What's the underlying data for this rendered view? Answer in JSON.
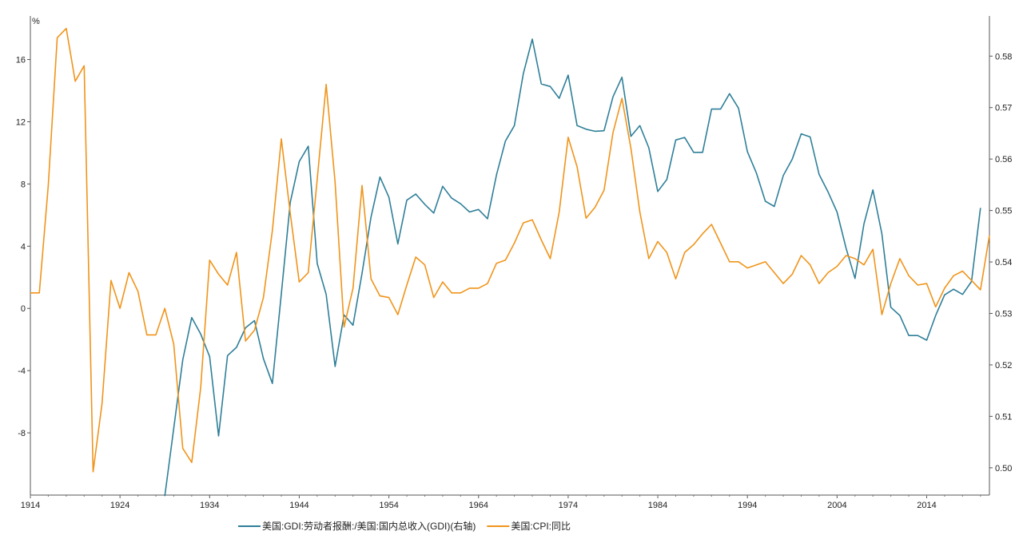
{
  "chart_data": {
    "type": "line",
    "title": "",
    "left_axis": {
      "unit_label": "%",
      "range": [
        -12,
        18.8
      ],
      "ticks": [
        -8,
        -4,
        0,
        4,
        8,
        12,
        16
      ]
    },
    "right_axis": {
      "range": [
        0.4947,
        0.5878
      ],
      "ticks": [
        0.5,
        0.51,
        0.52,
        0.53,
        0.54,
        0.55,
        0.56,
        0.57,
        0.58
      ]
    },
    "x_axis": {
      "range": [
        1914,
        2021
      ],
      "ticks": [
        1914,
        1924,
        1934,
        1944,
        1954,
        1964,
        1974,
        1984,
        1994,
        2004,
        2014
      ]
    },
    "series": [
      {
        "name": "美国:GDI:劳动者报酬:/美国:国内总收入(GDI)(右轴)",
        "axis": "right",
        "color": "#2f7f99",
        "x": [
          1929,
          1931,
          1932,
          1933,
          1934,
          1935,
          1936,
          1937,
          1938,
          1939,
          1940,
          1941,
          1942,
          1943,
          1944,
          1945,
          1946,
          1947,
          1948,
          1949,
          1950,
          1951,
          1952,
          1953,
          1954,
          1955,
          1956,
          1957,
          1958,
          1959,
          1960,
          1961,
          1962,
          1963,
          1964,
          1965,
          1966,
          1967,
          1968,
          1969,
          1970,
          1971,
          1972,
          1973,
          1974,
          1975,
          1976,
          1977,
          1978,
          1979,
          1980,
          1981,
          1982,
          1983,
          1984,
          1985,
          1986,
          1987,
          1988,
          1989,
          1990,
          1991,
          1992,
          1993,
          1994,
          1995,
          1996,
          1997,
          1998,
          1999,
          2000,
          2001,
          2002,
          2003,
          2004,
          2005,
          2006,
          2007,
          2008,
          2009,
          2010,
          2011,
          2012,
          2013,
          2014,
          2015,
          2016,
          2017,
          2018,
          2019,
          2020
        ],
        "values": [
          0.4945,
          0.521,
          0.5292,
          0.526,
          0.5216,
          0.5062,
          0.5218,
          0.5234,
          0.5272,
          0.5286,
          0.5212,
          0.5164,
          0.5338,
          0.5516,
          0.5595,
          0.5625,
          0.5397,
          0.5337,
          0.5197,
          0.5297,
          0.5277,
          0.5378,
          0.5487,
          0.5565,
          0.5526,
          0.5435,
          0.552,
          0.5532,
          0.5512,
          0.5495,
          0.5547,
          0.5524,
          0.5513,
          0.5497,
          0.5502,
          0.5484,
          0.5569,
          0.5635,
          0.5665,
          0.5766,
          0.5833,
          0.5746,
          0.5741,
          0.5718,
          0.5763,
          0.5665,
          0.5658,
          0.5654,
          0.5655,
          0.5721,
          0.5759,
          0.5644,
          0.5665,
          0.5622,
          0.5537,
          0.556,
          0.5637,
          0.5642,
          0.5613,
          0.5613,
          0.5697,
          0.5697,
          0.5727,
          0.5699,
          0.5614,
          0.5573,
          0.5518,
          0.5508,
          0.5568,
          0.56,
          0.5649,
          0.5643,
          0.557,
          0.5536,
          0.5497,
          0.5427,
          0.5368,
          0.5474,
          0.554,
          0.5455,
          0.5312,
          0.5296,
          0.5257,
          0.5257,
          0.5248,
          0.5296,
          0.5336,
          0.5347,
          0.5337,
          0.5362,
          0.5505
        ]
      },
      {
        "name": "美国:CPI:同比",
        "axis": "left",
        "color": "#f0941a",
        "x": [
          1914,
          1915,
          1916,
          1917,
          1918,
          1919,
          1920,
          1921,
          1922,
          1923,
          1924,
          1925,
          1926,
          1927,
          1928,
          1929,
          1930,
          1931,
          1932,
          1933,
          1934,
          1935,
          1936,
          1937,
          1938,
          1939,
          1940,
          1941,
          1942,
          1943,
          1944,
          1945,
          1946,
          1947,
          1948,
          1949,
          1950,
          1951,
          1952,
          1953,
          1954,
          1955,
          1956,
          1957,
          1958,
          1959,
          1960,
          1961,
          1962,
          1963,
          1964,
          1965,
          1966,
          1967,
          1968,
          1969,
          1970,
          1971,
          1972,
          1973,
          1974,
          1975,
          1976,
          1977,
          1978,
          1979,
          1980,
          1981,
          1982,
          1983,
          1984,
          1985,
          1986,
          1987,
          1988,
          1989,
          1990,
          1991,
          1992,
          1993,
          1994,
          1995,
          1996,
          1997,
          1998,
          1999,
          2000,
          2001,
          2002,
          2003,
          2004,
          2005,
          2006,
          2007,
          2008,
          2009,
          2010,
          2011,
          2012,
          2013,
          2014,
          2015,
          2016,
          2017,
          2018,
          2019,
          2020,
          2021
        ],
        "values": [
          1.0,
          1.0,
          7.9,
          17.4,
          18.0,
          14.6,
          15.6,
          -10.5,
          -6.1,
          1.8,
          0.0,
          2.3,
          1.1,
          -1.7,
          -1.7,
          0.0,
          -2.3,
          -9.0,
          -9.9,
          -5.1,
          3.1,
          2.2,
          1.5,
          3.6,
          -2.1,
          -1.4,
          0.7,
          5.0,
          10.9,
          6.1,
          1.7,
          2.3,
          8.3,
          14.4,
          8.1,
          -1.2,
          1.3,
          7.9,
          1.9,
          0.8,
          0.7,
          -0.4,
          1.5,
          3.3,
          2.8,
          0.7,
          1.7,
          1.0,
          1.0,
          1.3,
          1.3,
          1.6,
          2.9,
          3.1,
          4.2,
          5.5,
          5.7,
          4.4,
          3.2,
          6.2,
          11.0,
          9.1,
          5.8,
          6.5,
          7.6,
          11.3,
          13.5,
          10.3,
          6.2,
          3.2,
          4.3,
          3.6,
          1.9,
          3.6,
          4.1,
          4.8,
          5.4,
          4.2,
          3.0,
          3.0,
          2.6,
          2.8,
          3.0,
          2.3,
          1.6,
          2.2,
          3.4,
          2.8,
          1.6,
          2.3,
          2.7,
          3.4,
          3.2,
          2.8,
          3.8,
          -0.4,
          1.6,
          3.2,
          2.1,
          1.5,
          1.6,
          0.1,
          1.3,
          2.1,
          2.4,
          1.8,
          1.2,
          4.7
        ]
      }
    ],
    "legend": {
      "position": "bottom-center"
    }
  }
}
